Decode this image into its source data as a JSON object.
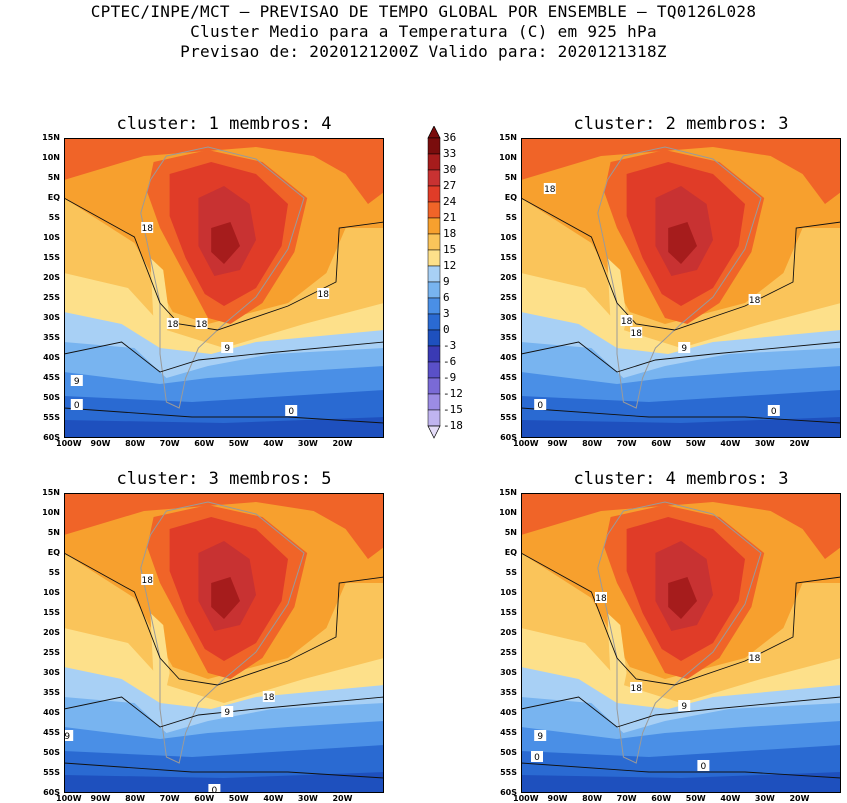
{
  "title": {
    "line1": "CPTEC/INPE/MCT – PREVISAO DE TEMPO GLOBAL POR ENSEMBLE – TQ0126L028",
    "line2": "Cluster Medio para a Temperatura (C) em 925 hPa",
    "line3": "Previsao de: 2020121200Z   Valido para: 2020121318Z"
  },
  "panels": [
    {
      "title": "cluster: 1  membros: 4",
      "contour_labels": [
        "18",
        "18",
        "18",
        "18",
        "9",
        "9",
        "0",
        "0"
      ]
    },
    {
      "title": "cluster: 2  membros: 3",
      "contour_labels": [
        "18",
        "18",
        "18",
        "18",
        "9",
        "0",
        "0"
      ]
    },
    {
      "title": "cluster: 3  membros: 5",
      "contour_labels": [
        "18",
        "18",
        "9",
        "9",
        "0"
      ]
    },
    {
      "title": "cluster: 4  membros: 3",
      "contour_labels": [
        "18",
        "18",
        "18",
        "9",
        "9",
        "0",
        "0"
      ]
    }
  ],
  "lat_ticks": [
    "15N",
    "10N",
    "5N",
    "EQ",
    "5S",
    "10S",
    "15S",
    "20S",
    "25S",
    "30S",
    "35S",
    "40S",
    "45S",
    "50S",
    "55S",
    "60S"
  ],
  "lon_ticks": [
    "100W",
    "90W",
    "80W",
    "70W",
    "60W",
    "50W",
    "40W",
    "30W",
    "20W"
  ],
  "colorbar": {
    "labels": [
      "36",
      "33",
      "30",
      "27",
      "24",
      "21",
      "18",
      "15",
      "12",
      "9",
      "6",
      "3",
      "0",
      "-3",
      "-6",
      "-9",
      "-12",
      "-15",
      "-18"
    ],
    "colors": [
      "#7a0d0d",
      "#a61c1c",
      "#c83232",
      "#e03c28",
      "#f06428",
      "#f7a02e",
      "#fac45a",
      "#fde08a",
      "#a8d0f5",
      "#78b4f0",
      "#4a8fe6",
      "#2a6ad2",
      "#1e50be",
      "#3a3ab4",
      "#5a50c8",
      "#7a6ad6",
      "#9c8ce4",
      "#c0b4f0"
    ]
  }
}
